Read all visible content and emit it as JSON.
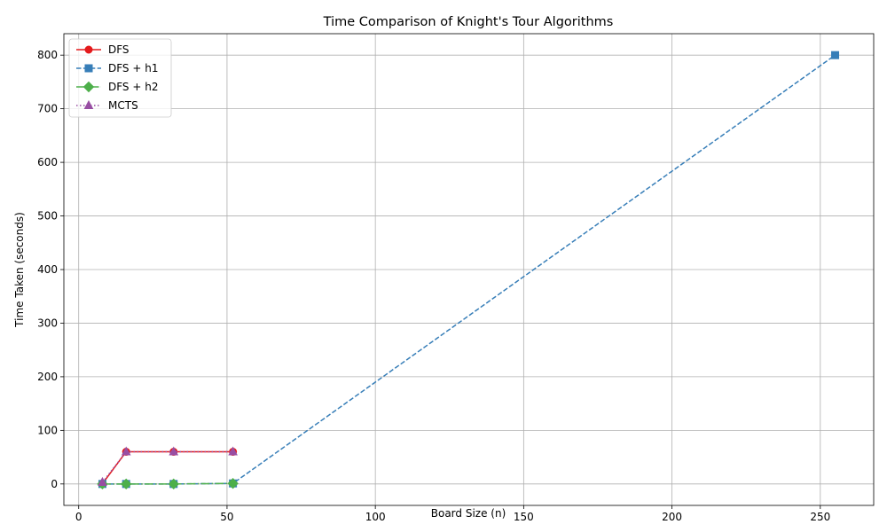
{
  "chart_data": {
    "type": "line",
    "title": "Time Comparison of Knight's Tour Algorithms",
    "xlabel": "Board Size (n)",
    "ylabel": "Time Taken (seconds)",
    "xlim": [
      -5,
      268
    ],
    "ylim": [
      -40,
      840
    ],
    "xticks": [
      0,
      50,
      100,
      150,
      200,
      250
    ],
    "yticks": [
      0,
      100,
      200,
      300,
      400,
      500,
      600,
      700,
      800
    ],
    "grid": true,
    "legend_position": "top-left",
    "series": [
      {
        "name": "DFS",
        "color": "#e41a1c",
        "marker": "circle",
        "dash": "solid",
        "x": [
          8,
          16,
          32,
          52
        ],
        "y": [
          0.5,
          60,
          60,
          60
        ]
      },
      {
        "name": "DFS + h1",
        "color": "#377eb8",
        "marker": "square",
        "dash": "dashed",
        "x": [
          8,
          16,
          32,
          52,
          255
        ],
        "y": [
          0,
          0,
          0,
          1,
          800
        ]
      },
      {
        "name": "DFS + h2",
        "color": "#4daf4a",
        "marker": "diamond",
        "dash": "dashdot",
        "x": [
          8,
          16,
          32,
          52
        ],
        "y": [
          0,
          0,
          0,
          1
        ]
      },
      {
        "name": "MCTS",
        "color": "#984ea3",
        "marker": "triangle",
        "dash": "dotted",
        "x": [
          8,
          16,
          32,
          52
        ],
        "y": [
          3,
          60,
          60,
          60
        ]
      }
    ]
  }
}
